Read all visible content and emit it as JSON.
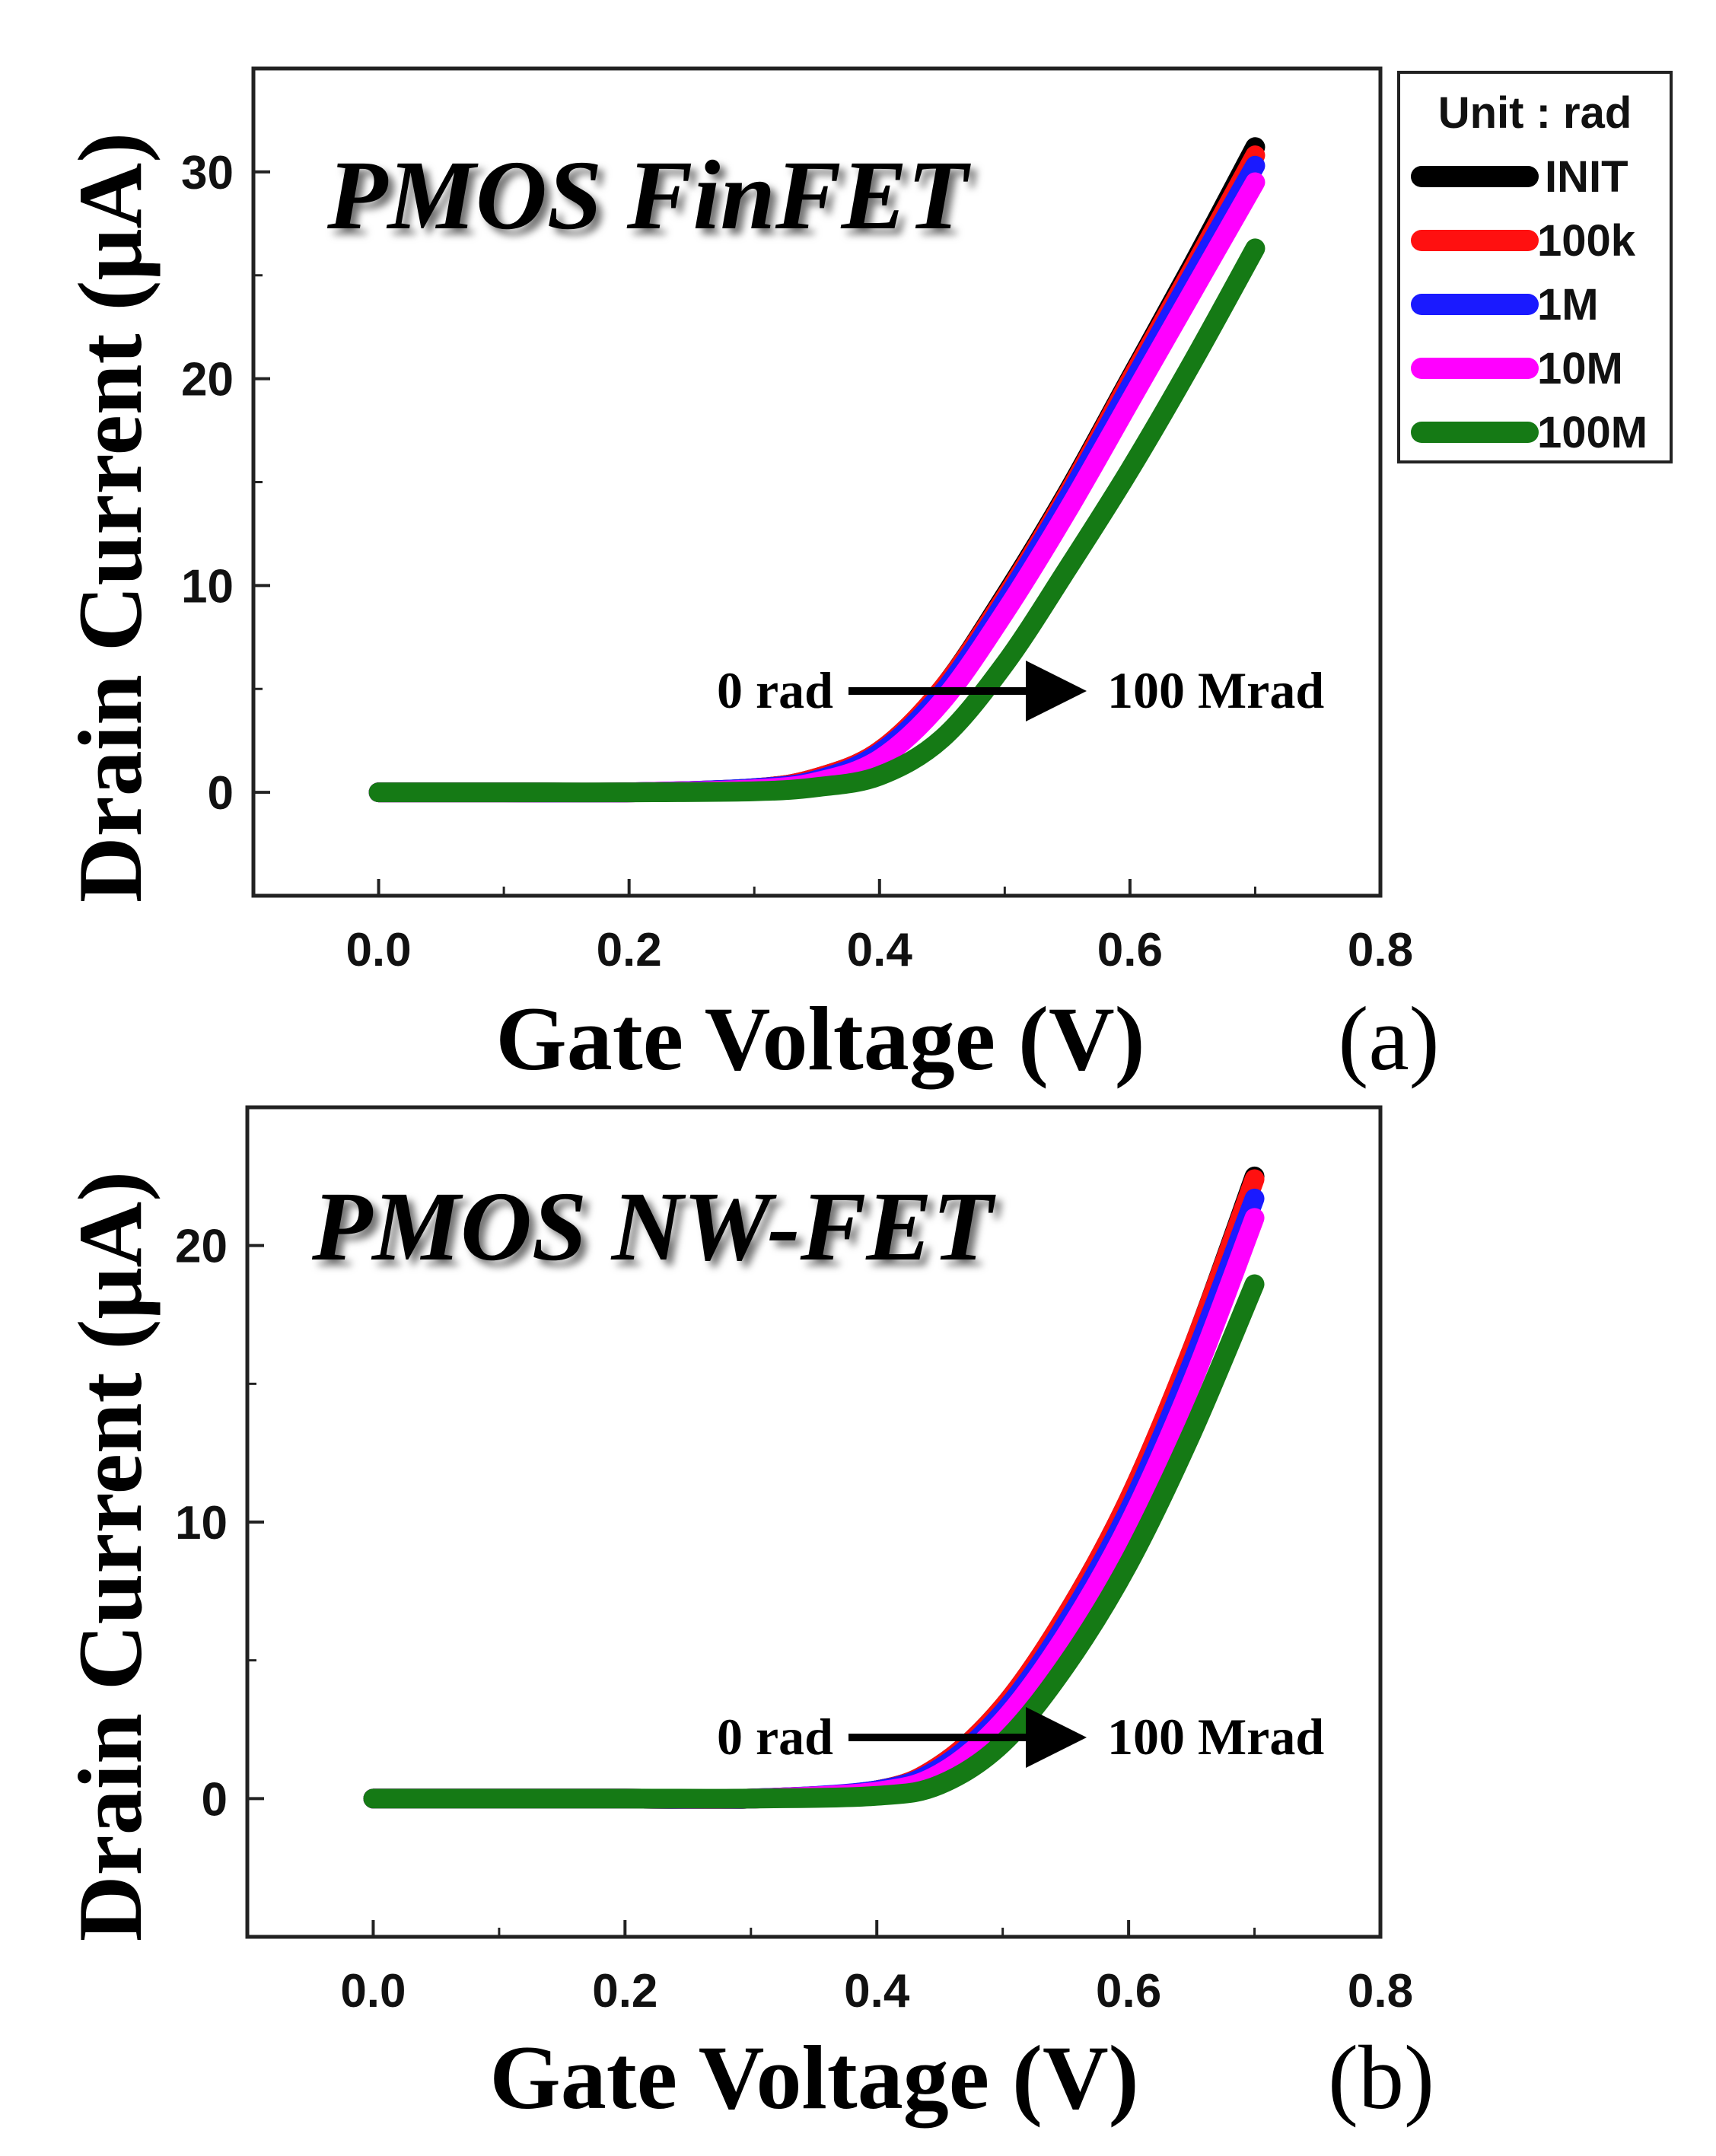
{
  "legend": {
    "title": "Unit : rad",
    "entries": [
      {
        "label": "INIT",
        "color": "#000000"
      },
      {
        "label": "100k",
        "color": "#ff1010"
      },
      {
        "label": "1M",
        "color": "#1a1aff"
      },
      {
        "label": "10M",
        "color": "#ff00ff"
      },
      {
        "label": "100M",
        "color": "#157a15"
      }
    ]
  },
  "chart_data": [
    {
      "type": "line",
      "title": "PMOS FinFET",
      "panel_label": "(a)",
      "xlabel": "Gate Voltage (V)",
      "ylabel": "Drain Current (μA)",
      "xlim": [
        -0.1,
        0.8
      ],
      "ylim": [
        -5,
        35
      ],
      "xticks": [
        "0.0",
        "0.2",
        "0.4",
        "0.6",
        "0.8"
      ],
      "yticks": [
        "0",
        "10",
        "20",
        "30"
      ],
      "annotation": {
        "from": "0 rad",
        "to": "100 Mrad"
      },
      "x": [
        0.0,
        0.1,
        0.2,
        0.3,
        0.35,
        0.4,
        0.45,
        0.5,
        0.55,
        0.6,
        0.65,
        0.7
      ],
      "series": [
        {
          "name": "INIT",
          "values": [
            0,
            0,
            0,
            0.2,
            0.7,
            2.0,
            5.0,
            9.5,
            14.5,
            20.0,
            25.5,
            31.2
          ]
        },
        {
          "name": "100k",
          "values": [
            0,
            0,
            0,
            0.2,
            0.7,
            2.0,
            5.0,
            9.4,
            14.4,
            19.9,
            25.3,
            30.8
          ]
        },
        {
          "name": "1M",
          "values": [
            0,
            0,
            0,
            0.2,
            0.6,
            1.9,
            4.8,
            9.2,
            14.2,
            19.6,
            25.0,
            30.3
          ]
        },
        {
          "name": "10M",
          "values": [
            0,
            0,
            0,
            0.15,
            0.5,
            1.6,
            4.4,
            8.7,
            13.6,
            18.9,
            24.2,
            29.5
          ]
        },
        {
          "name": "100M",
          "values": [
            0,
            0,
            0,
            0.05,
            0.25,
            0.8,
            2.6,
            6.2,
            10.8,
            15.6,
            20.8,
            26.3
          ]
        }
      ]
    },
    {
      "type": "line",
      "title": "PMOS NW-FET",
      "panel_label": "(b)",
      "xlabel": "Gate Voltage (V)",
      "ylabel": "Drain Current (μA)",
      "xlim": [
        -0.1,
        0.8
      ],
      "ylim": [
        -5,
        25
      ],
      "xticks": [
        "0.0",
        "0.2",
        "0.4",
        "0.6",
        "0.8"
      ],
      "yticks": [
        "0",
        "10",
        "20"
      ],
      "annotation": {
        "from": "0 rad",
        "to": "100 Mrad"
      },
      "x": [
        0.0,
        0.1,
        0.2,
        0.3,
        0.4,
        0.45,
        0.5,
        0.55,
        0.6,
        0.65,
        0.7
      ],
      "series": [
        {
          "name": "INIT",
          "values": [
            0,
            0,
            0,
            0,
            0.3,
            1.2,
            3.3,
            6.6,
            10.8,
            16.2,
            22.5
          ]
        },
        {
          "name": "100k",
          "values": [
            0,
            0,
            0,
            0,
            0.3,
            1.2,
            3.3,
            6.6,
            10.8,
            16.2,
            22.4
          ]
        },
        {
          "name": "1M",
          "values": [
            0,
            0,
            0,
            0,
            0.3,
            1.1,
            3.1,
            6.3,
            10.4,
            15.7,
            21.7
          ]
        },
        {
          "name": "10M",
          "values": [
            0,
            0,
            0,
            0,
            0.25,
            0.9,
            2.8,
            5.9,
            9.9,
            15.0,
            21.0
          ]
        },
        {
          "name": "100M",
          "values": [
            0,
            0,
            0,
            0,
            0.1,
            0.5,
            2.0,
            4.8,
            8.5,
            13.2,
            18.6
          ]
        }
      ]
    }
  ]
}
